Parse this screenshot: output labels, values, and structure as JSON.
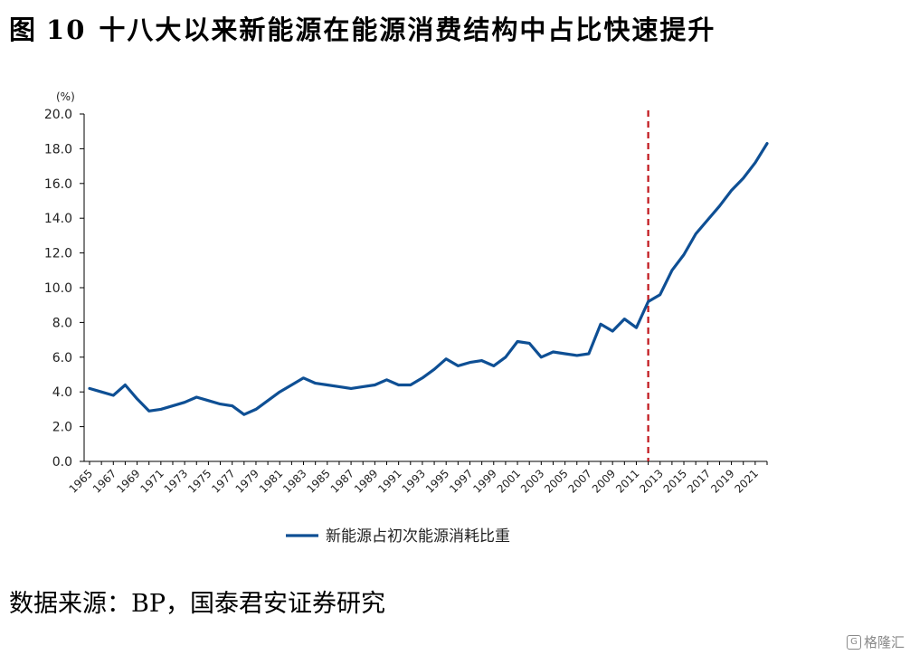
{
  "header": {
    "figure_label": "图",
    "figure_number": "10",
    "title_text": "十八大以来新能源在能源消费结构中占比快速提升"
  },
  "footer": {
    "source": "数据来源：BP，国泰君安证券研究"
  },
  "watermark": {
    "icon": "gelonghui-logo-icon",
    "text": "格隆汇"
  },
  "chart_data": {
    "type": "line",
    "unit_label": "(%)",
    "ylim": [
      0,
      20
    ],
    "yticks": [
      "20.0",
      "18.0",
      "16.0",
      "14.0",
      "12.0",
      "10.0",
      "8.0",
      "6.0",
      "4.0",
      "2.0",
      "0.0"
    ],
    "ytick_values": [
      20,
      18,
      16,
      14,
      12,
      10,
      8,
      6,
      4,
      2,
      0
    ],
    "x": [
      1965,
      1966,
      1967,
      1968,
      1969,
      1970,
      1971,
      1972,
      1973,
      1974,
      1975,
      1976,
      1977,
      1978,
      1979,
      1980,
      1981,
      1982,
      1983,
      1984,
      1985,
      1986,
      1987,
      1988,
      1989,
      1990,
      1991,
      1992,
      1993,
      1994,
      1995,
      1996,
      1997,
      1998,
      1999,
      2000,
      2001,
      2002,
      2003,
      2004,
      2005,
      2006,
      2007,
      2008,
      2009,
      2010,
      2011,
      2012,
      2013,
      2014,
      2015,
      2016,
      2017,
      2018,
      2019,
      2020,
      2021,
      2022
    ],
    "xtick_labels": [
      "1965",
      "1967",
      "1969",
      "1971",
      "1973",
      "1975",
      "1977",
      "1979",
      "1981",
      "1983",
      "1985",
      "1987",
      "1989",
      "1991",
      "1993",
      "1995",
      "1997",
      "1999",
      "2001",
      "2003",
      "2005",
      "2007",
      "2009",
      "2011",
      "2013",
      "2015",
      "2017",
      "2019",
      "2021"
    ],
    "series": [
      {
        "name": "新能源占初次能源消耗比重",
        "color": "#0e4f94",
        "values": [
          4.2,
          4.0,
          3.8,
          4.4,
          3.6,
          2.9,
          3.0,
          3.2,
          3.4,
          3.7,
          3.5,
          3.3,
          3.2,
          2.7,
          3.0,
          3.5,
          4.0,
          4.4,
          4.8,
          4.5,
          4.4,
          4.3,
          4.2,
          4.3,
          4.4,
          4.7,
          4.4,
          4.4,
          4.8,
          5.3,
          5.9,
          5.5,
          5.7,
          5.8,
          5.5,
          6.0,
          6.9,
          6.8,
          6.0,
          6.3,
          6.2,
          6.1,
          6.2,
          7.9,
          7.5,
          8.2,
          7.7,
          9.2,
          9.6,
          11.0,
          11.9,
          13.1,
          13.9,
          14.7,
          15.6,
          16.3,
          17.2,
          18.3
        ]
      }
    ],
    "marker_line": {
      "year": 2012,
      "color": "#c0151b"
    },
    "legend_position": "bottom-center",
    "grid": false
  }
}
